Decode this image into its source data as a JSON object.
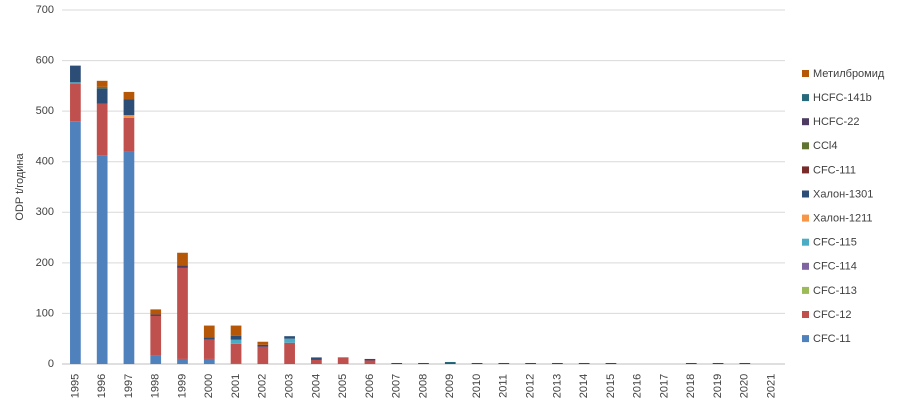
{
  "chart_data": {
    "type": "stacked_bar",
    "y_label": "ODP t/година",
    "categories": [
      "1995",
      "1996",
      "1997",
      "1998",
      "1999",
      "2000",
      "2001",
      "2002",
      "2003",
      "2004",
      "2005",
      "2006",
      "2007",
      "2008",
      "2009",
      "2010",
      "2011",
      "2012",
      "2013",
      "2014",
      "2015",
      "2016",
      "2017",
      "2018",
      "2019",
      "2020",
      "2021"
    ],
    "ylim": [
      0,
      700
    ],
    "yticks": [
      0,
      100,
      200,
      300,
      400,
      500,
      600,
      700
    ],
    "grid": true,
    "series": [
      {
        "name": "CFC-11",
        "color": "#4f81bd",
        "values": [
          480,
          413,
          420,
          17,
          10,
          10,
          2,
          0,
          0,
          0,
          0,
          0,
          0,
          0,
          0,
          0,
          0,
          0,
          0,
          0,
          0,
          0,
          0,
          0,
          0,
          0,
          0
        ]
      },
      {
        "name": "CFC-12",
        "color": "#c0504d",
        "values": [
          75,
          102,
          67,
          78,
          180,
          38,
          38,
          34,
          42,
          8,
          12,
          7,
          0,
          0,
          0,
          0,
          0,
          0,
          0,
          0,
          0,
          0,
          0,
          0,
          0,
          0,
          0
        ]
      },
      {
        "name": "CFC-113",
        "color": "#9bbb59",
        "values": [
          0,
          0,
          0,
          0,
          0,
          0,
          0,
          0,
          0,
          0,
          0,
          0,
          0,
          0,
          0,
          0,
          0,
          0,
          0,
          0,
          0,
          0,
          0,
          0,
          0,
          0,
          0
        ]
      },
      {
        "name": "CFC-114",
        "color": "#8064a2",
        "values": [
          0,
          0,
          0,
          0,
          0,
          0,
          0,
          0,
          0,
          0,
          0,
          0,
          0,
          0,
          0,
          0,
          0,
          0,
          0,
          0,
          0,
          0,
          0,
          0,
          0,
          0,
          0
        ]
      },
      {
        "name": "CFC-115",
        "color": "#4bacc6",
        "values": [
          2,
          0,
          0,
          0,
          0,
          0,
          8,
          0,
          8,
          0,
          0,
          0,
          0,
          0,
          0,
          0,
          0,
          0,
          0,
          0,
          0,
          0,
          0,
          0,
          0,
          0,
          0
        ]
      },
      {
        "name": "Халон-1211",
        "color": "#f79646",
        "values": [
          0,
          0,
          5,
          0,
          0,
          0,
          0,
          0,
          0,
          0,
          0,
          0,
          0,
          0,
          0,
          0,
          0,
          0,
          0,
          0,
          0,
          0,
          0,
          0,
          0,
          0,
          0
        ]
      },
      {
        "name": "Халон-1301",
        "color": "#2c4d75",
        "values": [
          33,
          30,
          31,
          0,
          0,
          5,
          8,
          0,
          5,
          5,
          0,
          0,
          0,
          0,
          0,
          0,
          0,
          0,
          0,
          0,
          0,
          0,
          0,
          0,
          0,
          0,
          0
        ]
      },
      {
        "name": "CFC-111",
        "color": "#772c2a",
        "values": [
          0,
          0,
          0,
          0,
          0,
          0,
          0,
          0,
          0,
          0,
          0,
          0,
          0,
          0,
          0,
          0,
          0,
          0,
          0,
          0,
          0,
          0,
          0,
          0,
          0,
          0,
          0
        ]
      },
      {
        "name": "CCl4",
        "color": "#5f7530",
        "values": [
          0,
          3,
          0,
          0,
          0,
          0,
          0,
          0,
          0,
          0,
          0,
          0,
          0,
          0,
          0,
          0,
          0,
          0,
          0,
          0,
          0,
          0,
          0,
          0,
          0,
          0,
          0
        ]
      },
      {
        "name": "HCFC-22",
        "color": "#4d3b62",
        "values": [
          0,
          0,
          0,
          3,
          5,
          0,
          0,
          4,
          0,
          0,
          1,
          3,
          2,
          2,
          1,
          2,
          2,
          2,
          2,
          2,
          2,
          0,
          0,
          2,
          2,
          2,
          0
        ]
      },
      {
        "name": "HCFC-141b",
        "color": "#276a7c",
        "values": [
          0,
          0,
          0,
          0,
          0,
          0,
          0,
          0,
          0,
          0,
          0,
          0,
          0,
          0,
          3,
          0,
          0,
          0,
          0,
          0,
          0,
          0,
          0,
          0,
          0,
          0,
          0
        ]
      },
      {
        "name": "Метилбромид",
        "color": "#b65708",
        "values": [
          0,
          12,
          15,
          10,
          25,
          23,
          20,
          6,
          0,
          0,
          0,
          0,
          0,
          0,
          0,
          0,
          0,
          0,
          0,
          0,
          0,
          0,
          0,
          0,
          0,
          0,
          0
        ]
      }
    ]
  }
}
